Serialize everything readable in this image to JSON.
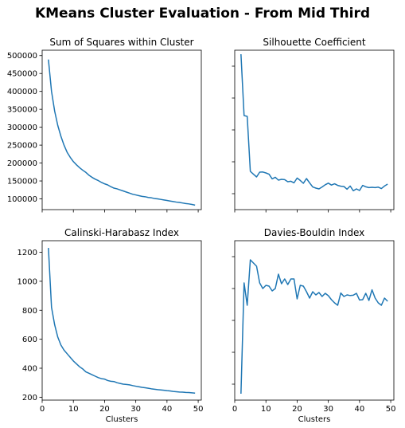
{
  "figure": {
    "title": "KMeans Cluster Evaluation - From Mid Third"
  },
  "chart_data": [
    {
      "type": "line",
      "title": "Sum of Squares within Cluster",
      "xlabel": "",
      "ylabel": "",
      "xlim": [
        0,
        51
      ],
      "ylim": [
        70000,
        515000
      ],
      "xticks": [
        0,
        10,
        20,
        30,
        40,
        50
      ],
      "show_xtick_labels": false,
      "yticks": [
        100000,
        150000,
        200000,
        250000,
        300000,
        350000,
        400000,
        450000,
        500000
      ],
      "ytick_labels": [
        "100000",
        "150000",
        "200000",
        "250000",
        "300000",
        "350000",
        "400000",
        "450000",
        "500000"
      ],
      "show_ytick_labels": true,
      "grid": false,
      "x": [
        2,
        3,
        4,
        5,
        6,
        7,
        8,
        9,
        10,
        11,
        12,
        13,
        14,
        15,
        16,
        17,
        18,
        19,
        20,
        21,
        22,
        23,
        24,
        25,
        26,
        27,
        28,
        29,
        30,
        31,
        32,
        33,
        34,
        35,
        36,
        37,
        38,
        39,
        40,
        41,
        42,
        43,
        44,
        45,
        46,
        47,
        48,
        49
      ],
      "y": [
        489000,
        400000,
        345000,
        305000,
        275000,
        250000,
        230000,
        216000,
        204000,
        195000,
        187000,
        180000,
        174000,
        166000,
        160000,
        155000,
        151000,
        146000,
        142000,
        139000,
        134000,
        130000,
        128000,
        125000,
        122000,
        119000,
        116000,
        113000,
        111000,
        109000,
        107000,
        106000,
        104000,
        103000,
        101000,
        100000,
        98500,
        97000,
        95500,
        94000,
        92500,
        91000,
        90000,
        88500,
        87000,
        86000,
        84500,
        82500
      ]
    },
    {
      "type": "line",
      "title": "Silhouette Coefficient",
      "xlabel": "",
      "ylabel": "",
      "xlim": [
        0,
        51
      ],
      "ylim": [
        0,
        1
      ],
      "xticks": [
        0,
        10,
        20,
        30,
        40,
        50
      ],
      "show_xtick_labels": false,
      "yticks": [
        0.1,
        0.3,
        0.5,
        0.7,
        0.9
      ],
      "show_ytick_labels": false,
      "grid": false,
      "x": [
        2,
        3,
        4,
        5,
        6,
        7,
        8,
        9,
        10,
        11,
        12,
        13,
        14,
        15,
        16,
        17,
        18,
        19,
        20,
        21,
        22,
        23,
        24,
        25,
        26,
        27,
        28,
        29,
        30,
        31,
        32,
        33,
        34,
        35,
        36,
        37,
        38,
        39,
        40,
        41,
        42,
        43,
        44,
        45,
        46,
        47,
        48,
        49
      ],
      "y": [
        0.975,
        0.59,
        0.585,
        0.24,
        0.222,
        0.205,
        0.235,
        0.236,
        0.23,
        0.222,
        0.193,
        0.203,
        0.185,
        0.19,
        0.188,
        0.175,
        0.178,
        0.168,
        0.198,
        0.183,
        0.165,
        0.195,
        0.168,
        0.142,
        0.135,
        0.13,
        0.142,
        0.156,
        0.166,
        0.154,
        0.162,
        0.152,
        0.147,
        0.145,
        0.128,
        0.148,
        0.118,
        0.13,
        0.12,
        0.152,
        0.143,
        0.138,
        0.14,
        0.138,
        0.141,
        0.132,
        0.148,
        0.16
      ]
    },
    {
      "type": "line",
      "title": "Calinski-Harabasz Index",
      "xlabel": "Clusters",
      "ylabel": "",
      "xlim": [
        0,
        51
      ],
      "ylim": [
        180,
        1280
      ],
      "xticks": [
        0,
        10,
        20,
        30,
        40,
        50
      ],
      "xtick_labels": [
        "0",
        "10",
        "20",
        "30",
        "40",
        "50"
      ],
      "show_xtick_labels": true,
      "yticks": [
        200,
        400,
        600,
        800,
        1000,
        1200
      ],
      "ytick_labels": [
        "200",
        "400",
        "600",
        "800",
        "1000",
        "1200"
      ],
      "show_ytick_labels": true,
      "grid": false,
      "x": [
        2,
        3,
        4,
        5,
        6,
        7,
        8,
        9,
        10,
        11,
        12,
        13,
        14,
        15,
        16,
        17,
        18,
        19,
        20,
        21,
        22,
        23,
        24,
        25,
        26,
        27,
        28,
        29,
        30,
        31,
        32,
        33,
        34,
        35,
        36,
        37,
        38,
        39,
        40,
        41,
        42,
        43,
        44,
        45,
        46,
        47,
        48,
        49
      ],
      "y": [
        1230,
        820,
        700,
        615,
        560,
        525,
        500,
        475,
        450,
        430,
        410,
        395,
        375,
        365,
        355,
        345,
        335,
        328,
        325,
        315,
        310,
        308,
        300,
        295,
        290,
        288,
        285,
        280,
        276,
        272,
        268,
        265,
        262,
        258,
        255,
        252,
        250,
        248,
        245,
        243,
        240,
        238,
        236,
        235,
        233,
        232,
        230,
        228
      ]
    },
    {
      "type": "line",
      "title": "Davies-Bouldin Index",
      "xlabel": "Clusters",
      "ylabel": "",
      "xlim": [
        0,
        51
      ],
      "ylim": [
        0,
        1
      ],
      "xticks": [
        0,
        10,
        20,
        30,
        40,
        50
      ],
      "xtick_labels": [
        "0",
        "10",
        "20",
        "30",
        "40",
        "50"
      ],
      "show_xtick_labels": true,
      "yticks": [
        0.1,
        0.3,
        0.5,
        0.7,
        0.9
      ],
      "show_ytick_labels": false,
      "grid": false,
      "x": [
        2,
        3,
        4,
        5,
        6,
        7,
        8,
        9,
        10,
        11,
        12,
        13,
        14,
        15,
        16,
        17,
        18,
        19,
        20,
        21,
        22,
        23,
        24,
        25,
        26,
        27,
        28,
        29,
        30,
        31,
        32,
        33,
        34,
        35,
        36,
        37,
        38,
        39,
        40,
        41,
        42,
        43,
        44,
        45,
        46,
        47,
        48,
        49
      ],
      "y": [
        0.04,
        0.735,
        0.595,
        0.88,
        0.86,
        0.84,
        0.735,
        0.7,
        0.72,
        0.715,
        0.685,
        0.7,
        0.79,
        0.73,
        0.76,
        0.725,
        0.76,
        0.76,
        0.635,
        0.72,
        0.715,
        0.68,
        0.64,
        0.68,
        0.66,
        0.675,
        0.65,
        0.67,
        0.655,
        0.63,
        0.61,
        0.595,
        0.672,
        0.65,
        0.66,
        0.656,
        0.658,
        0.67,
        0.628,
        0.63,
        0.67,
        0.625,
        0.692,
        0.64,
        0.61,
        0.595,
        0.64,
        0.62
      ]
    }
  ]
}
